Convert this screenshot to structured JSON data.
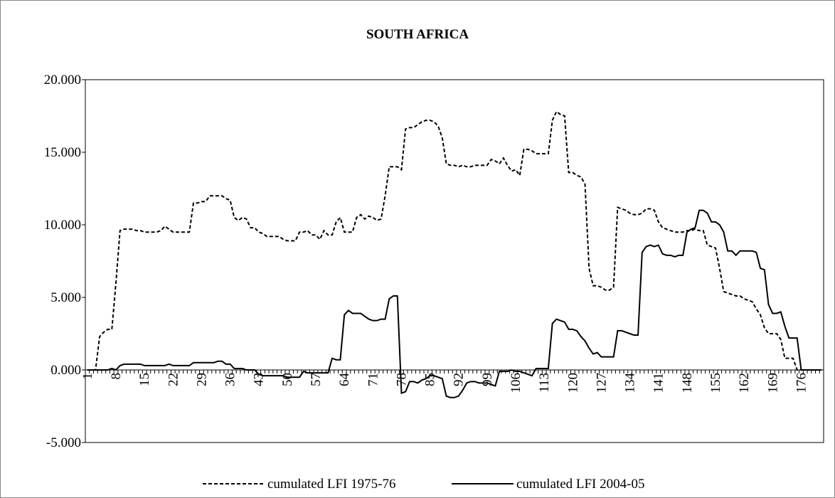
{
  "chart_data": {
    "type": "line",
    "title": "SOUTH AFRICA",
    "categories": [
      "1",
      null,
      null,
      null,
      null,
      null,
      null,
      "8",
      null,
      null,
      null,
      null,
      null,
      null,
      "15",
      null,
      null,
      null,
      null,
      null,
      null,
      "22",
      null,
      null,
      null,
      null,
      null,
      null,
      "29",
      null,
      null,
      null,
      null,
      null,
      null,
      "36",
      null,
      null,
      null,
      null,
      null,
      null,
      "43",
      null,
      null,
      null,
      null,
      null,
      null,
      "50",
      null,
      null,
      null,
      null,
      null,
      null,
      "57",
      null,
      null,
      null,
      null,
      null,
      null,
      "64",
      null,
      null,
      null,
      null,
      null,
      null,
      "71",
      null,
      null,
      null,
      null,
      null,
      null,
      "78",
      null,
      null,
      null,
      null,
      null,
      null,
      "85",
      null,
      null,
      null,
      null,
      null,
      null,
      "92",
      null,
      null,
      null,
      null,
      null,
      null,
      "99",
      null,
      null,
      null,
      null,
      null,
      null,
      "106",
      null,
      null,
      null,
      null,
      null,
      null,
      "113",
      null,
      null,
      null,
      null,
      null,
      null,
      "120",
      null,
      null,
      null,
      null,
      null,
      null,
      "127",
      null,
      null,
      null,
      null,
      null,
      null,
      "134",
      null,
      null,
      null,
      null,
      null,
      null,
      "141",
      null,
      null,
      null,
      null,
      null,
      null,
      "148",
      null,
      null,
      null,
      null,
      null,
      null,
      "155",
      null,
      null,
      null,
      null,
      null,
      null,
      "162",
      null,
      null,
      null,
      null,
      null,
      null,
      "169",
      null,
      null,
      null,
      null,
      null,
      null,
      "176",
      null,
      null,
      null,
      null,
      null
    ],
    "series": [
      {
        "name": "cumulated LFI 1975-76",
        "color": "#000000",
        "dash": true,
        "values": [
          0,
          0,
          0,
          2.3,
          2.6,
          2.8,
          2.8,
          6.0,
          9.6,
          9.7,
          9.7,
          9.7,
          9.6,
          9.6,
          9.5,
          9.5,
          9.5,
          9.5,
          9.6,
          9.9,
          9.7,
          9.5,
          9.5,
          9.5,
          9.5,
          9.5,
          11.5,
          11.5,
          11.6,
          11.6,
          12.0,
          12.0,
          12.0,
          12.0,
          11.8,
          11.7,
          10.5,
          10.3,
          10.5,
          10.4,
          9.8,
          9.8,
          9.5,
          9.4,
          9.2,
          9.2,
          9.2,
          9.2,
          9.0,
          8.9,
          8.9,
          8.9,
          9.5,
          9.5,
          9.6,
          9.3,
          9.3,
          9.0,
          9.6,
          9.3,
          9.3,
          10.2,
          10.5,
          9.5,
          9.5,
          9.5,
          10.5,
          10.7,
          10.4,
          10.6,
          10.5,
          10.3,
          10.4,
          12.0,
          14.0,
          14.0,
          14.0,
          13.8,
          16.6,
          16.7,
          16.7,
          16.9,
          17.1,
          17.2,
          17.2,
          17.1,
          16.8,
          16.0,
          14.2,
          14.1,
          14.1,
          14.0,
          14.1,
          14.0,
          14.0,
          14.1,
          14.1,
          14.1,
          14.1,
          14.5,
          14.4,
          14.2,
          14.6,
          14.1,
          13.7,
          13.8,
          13.4,
          15.2,
          15.2,
          15.1,
          14.9,
          14.9,
          14.9,
          14.9,
          17.2,
          17.8,
          17.6,
          17.5,
          13.6,
          13.6,
          13.4,
          13.3,
          12.8,
          7.0,
          5.8,
          5.8,
          5.7,
          5.5,
          5.5,
          5.7,
          11.2,
          11.1,
          11.0,
          10.8,
          10.7,
          10.7,
          10.8,
          11.1,
          11.1,
          11.0,
          10.2,
          9.8,
          9.7,
          9.6,
          9.5,
          9.5,
          9.5,
          9.6,
          9.6,
          9.7,
          9.6,
          9.6,
          8.6,
          8.5,
          8.4,
          7.0,
          5.4,
          5.3,
          5.2,
          5.1,
          5.1,
          4.9,
          4.8,
          4.7,
          4.2,
          3.8,
          2.9,
          2.5,
          2.5,
          2.5,
          2.1,
          0.8,
          0.8,
          0.8,
          0,
          0,
          0,
          0,
          0,
          0,
          0
        ]
      },
      {
        "name": "cumulated LFI 2004-05",
        "color": "#000000",
        "dash": false,
        "values": [
          0,
          0,
          0,
          0,
          0,
          0,
          0.1,
          0,
          0.3,
          0.4,
          0.4,
          0.4,
          0.4,
          0.4,
          0.3,
          0.3,
          0.3,
          0.3,
          0.3,
          0.3,
          0.4,
          0.3,
          0.3,
          0.3,
          0.3,
          0.3,
          0.5,
          0.5,
          0.5,
          0.5,
          0.5,
          0.5,
          0.6,
          0.6,
          0.4,
          0.4,
          0.1,
          0.1,
          0.1,
          0,
          0,
          0,
          -0.3,
          -0.4,
          -0.4,
          -0.4,
          -0.4,
          -0.4,
          -0.4,
          -0.5,
          -0.5,
          -0.5,
          -0.5,
          -0.1,
          -0.2,
          -0.2,
          -0.2,
          -0.2,
          -0.2,
          -0.2,
          0.8,
          0.7,
          0.7,
          3.8,
          4.1,
          3.9,
          3.9,
          3.9,
          3.7,
          3.5,
          3.4,
          3.4,
          3.5,
          3.5,
          4.9,
          5.1,
          5.1,
          -1.6,
          -1.5,
          -0.8,
          -0.8,
          -0.9,
          -0.7,
          -0.6,
          -0.4,
          -0.4,
          -0.5,
          -0.6,
          -1.8,
          -1.9,
          -1.9,
          -1.8,
          -1.4,
          -0.9,
          -0.8,
          -0.8,
          -0.9,
          -0.9,
          -0.9,
          -1.0,
          -1.1,
          -0.1,
          -0.1,
          -0.1,
          0,
          -0.1,
          -0.1,
          -0.2,
          -0.3,
          -0.4,
          0.1,
          0.1,
          0.1,
          0.1,
          3.2,
          3.5,
          3.4,
          3.3,
          2.8,
          2.8,
          2.7,
          2.3,
          2.0,
          1.5,
          1.1,
          1.2,
          0.9,
          0.9,
          0.9,
          0.9,
          2.7,
          2.7,
          2.6,
          2.5,
          2.4,
          2.4,
          8.1,
          8.5,
          8.6,
          8.5,
          8.6,
          8.0,
          7.9,
          7.9,
          7.8,
          7.9,
          7.9,
          9.5,
          9.7,
          9.8,
          11.0,
          11.0,
          10.8,
          10.2,
          10.2,
          10.0,
          9.5,
          8.2,
          8.2,
          7.9,
          8.2,
          8.2,
          8.2,
          8.2,
          8.1,
          7.0,
          6.9,
          4.5,
          3.9,
          3.9,
          4.0,
          3.0,
          2.2,
          2.2,
          2.2,
          0,
          0,
          0,
          0,
          0,
          0
        ]
      }
    ],
    "ylim": [
      -5,
      20
    ],
    "yticks": [
      {
        "value": -5,
        "label": "-5.000"
      },
      {
        "value": 0,
        "label": "0.000"
      },
      {
        "value": 5,
        "label": "5.000"
      },
      {
        "value": 10,
        "label": "10.000"
      },
      {
        "value": 15,
        "label": "15.000"
      },
      {
        "value": 20,
        "label": "20.000"
      }
    ],
    "grid": false,
    "legend": "bottom"
  }
}
